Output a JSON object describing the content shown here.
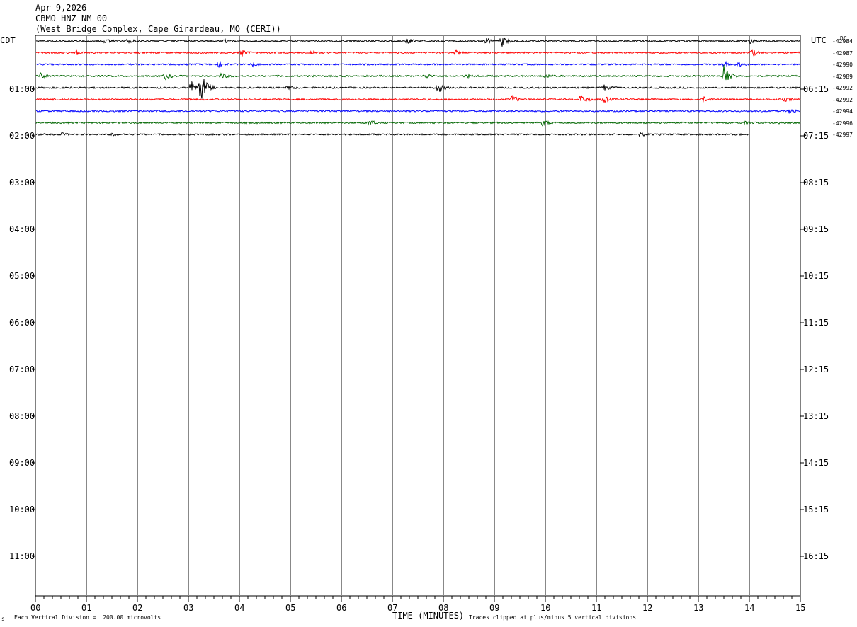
{
  "header": {
    "date": "Apr 9,2026",
    "station": "CBMO HNZ NM 00",
    "location": "(West Bridge Complex, Cape Girardeau, MO (CERI))"
  },
  "left_tz": "CDT",
  "right_tz": "UTC",
  "dc_label": "DC",
  "footer": {
    "division": "Each Vertical Division =  200.00 microvolts",
    "xlabel": "TIME (MINUTES)",
    "clip_note": "Traces clipped at plus/minus 5 vertical divisions",
    "corner_mark": "s"
  },
  "chart_data": {
    "type": "line",
    "xlabel": "TIME (MINUTES)",
    "xlim": [
      0,
      15
    ],
    "x_ticks": [
      "00",
      "01",
      "02",
      "03",
      "04",
      "05",
      "06",
      "07",
      "08",
      "09",
      "10",
      "11",
      "12",
      "13",
      "14",
      "15"
    ],
    "left_hour_labels": [
      "01:00",
      "02:00",
      "03:00",
      "04:00",
      "05:00",
      "06:00",
      "07:00",
      "08:00",
      "09:00",
      "10:00",
      "11:00"
    ],
    "right_hour_labels": [
      "06:15",
      "07:15",
      "08:15",
      "09:15",
      "10:15",
      "11:15",
      "12:15",
      "13:15",
      "14:15",
      "15:15",
      "16:15"
    ],
    "trace_colors": [
      "#000000",
      "#ff0000",
      "#0000ff",
      "#006600"
    ],
    "traces": [
      {
        "dc": "-42984",
        "color": "#000000",
        "end_minute": 15,
        "events": [
          [
            1.35,
            0.4
          ],
          [
            1.8,
            0.35
          ],
          [
            3.7,
            0.35
          ],
          [
            7.3,
            0.6
          ],
          [
            8.85,
            0.55
          ],
          [
            9.15,
            1.0
          ],
          [
            14.0,
            0.4
          ]
        ]
      },
      {
        "dc": "-42987",
        "color": "#ff0000",
        "end_minute": 15,
        "events": [
          [
            0.8,
            0.5
          ],
          [
            4.05,
            0.6
          ],
          [
            5.4,
            0.5
          ],
          [
            8.25,
            0.4
          ],
          [
            14.05,
            0.6
          ]
        ]
      },
      {
        "dc": "-42990",
        "color": "#0000ff",
        "end_minute": 15,
        "events": [
          [
            3.6,
            0.4
          ],
          [
            4.25,
            0.3
          ],
          [
            13.5,
            0.6
          ],
          [
            13.8,
            0.4
          ]
        ]
      },
      {
        "dc": "-42989",
        "color": "#006600",
        "end_minute": 15,
        "events": [
          [
            0.1,
            0.6
          ],
          [
            2.55,
            0.6
          ],
          [
            3.65,
            0.5
          ],
          [
            7.65,
            0.4
          ],
          [
            8.45,
            0.3
          ],
          [
            10.0,
            0.35
          ],
          [
            13.5,
            2.2
          ]
        ]
      },
      {
        "dc": "-42992",
        "color": "#000000",
        "end_minute": 15,
        "events": [
          [
            3.05,
            1.6
          ],
          [
            3.25,
            3.0
          ],
          [
            4.95,
            0.3
          ],
          [
            7.9,
            0.9
          ],
          [
            11.15,
            0.5
          ]
        ]
      },
      {
        "dc": "-42992",
        "color": "#ff0000",
        "end_minute": 15,
        "events": [
          [
            9.35,
            0.7
          ],
          [
            10.7,
            0.9
          ],
          [
            11.15,
            0.6
          ],
          [
            13.1,
            0.4
          ],
          [
            14.7,
            0.3
          ]
        ]
      },
      {
        "dc": "-42994",
        "color": "#0000ff",
        "end_minute": 15,
        "events": [
          [
            14.8,
            0.5
          ]
        ]
      },
      {
        "dc": "-42996",
        "color": "#006600",
        "end_minute": 15,
        "events": [
          [
            6.55,
            0.5
          ],
          [
            9.95,
            0.5
          ],
          [
            13.9,
            0.2
          ],
          [
            14.6,
            0.2
          ]
        ]
      },
      {
        "dc": "-42997",
        "color": "#000000",
        "end_minute": 14.0,
        "events": [
          [
            0.5,
            0.25
          ],
          [
            1.5,
            0.2
          ],
          [
            11.85,
            0.4
          ]
        ]
      }
    ]
  }
}
